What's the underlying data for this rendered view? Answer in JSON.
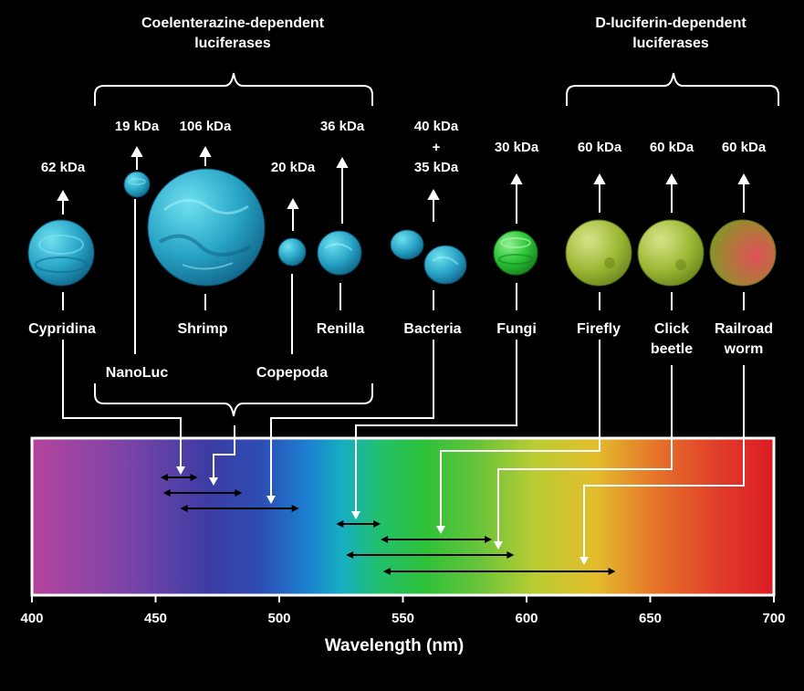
{
  "groups": {
    "coelenterazine": [
      "Coelenterazine-dependent",
      "luciferases"
    ],
    "luciferin": [
      "D-luciferin-dependent",
      "luciferases"
    ]
  },
  "enzymes": [
    {
      "id": "cypridina",
      "name": [
        "Cypridina"
      ],
      "mass": [
        "62 kDa"
      ],
      "range": [
        452,
        467
      ],
      "color": "#22a4c4"
    },
    {
      "id": "nanoluc",
      "name": [
        "NanoLuc"
      ],
      "mass": [
        "19 kDa"
      ],
      "range": [
        453,
        485
      ],
      "color": "#2cb0cc"
    },
    {
      "id": "shrimp",
      "name": [
        "Shrimp"
      ],
      "mass": [
        "106 kDa"
      ],
      "range": [
        460,
        508
      ],
      "color": "#2eb2c8"
    },
    {
      "id": "copepoda",
      "name": [
        "Copepoda"
      ],
      "mass": [
        "20 kDa"
      ],
      "range": [
        460,
        508
      ],
      "color": "#2aaac8"
    },
    {
      "id": "renilla",
      "name": [
        "Renilla"
      ],
      "mass": [
        "36 kDa"
      ],
      "range": [
        460,
        508
      ],
      "color": "#22a8cc"
    },
    {
      "id": "bacteria",
      "name": [
        "Bacteria"
      ],
      "mass": [
        "40 kDa",
        "+",
        "35 kDa"
      ],
      "range": [
        460,
        508
      ],
      "color": "#1f98c0"
    },
    {
      "id": "fungi",
      "name": [
        "Fungi"
      ],
      "mass": [
        "30 kDa"
      ],
      "range": [
        523,
        541
      ],
      "color": "#33c63e"
    },
    {
      "id": "firefly",
      "name": [
        "Firefly"
      ],
      "mass": [
        "60 kDa"
      ],
      "range": [
        541,
        586
      ],
      "color": "#8fb12c"
    },
    {
      "id": "click_beetle",
      "name": [
        "Click",
        "beetle"
      ],
      "mass": [
        "60 kDa"
      ],
      "range": [
        527,
        595
      ],
      "color": "#8fb12c"
    },
    {
      "id": "railroad_worm",
      "name": [
        "Railroad",
        "worm"
      ],
      "mass": [
        "60 kDa"
      ],
      "range": [
        542,
        636
      ],
      "color": "#9a9a3a"
    }
  ],
  "axis": {
    "label": "Wavelength (nm)",
    "min": 400,
    "max": 700,
    "ticks": [
      "400",
      "450",
      "500",
      "550",
      "600",
      "650",
      "700"
    ]
  }
}
